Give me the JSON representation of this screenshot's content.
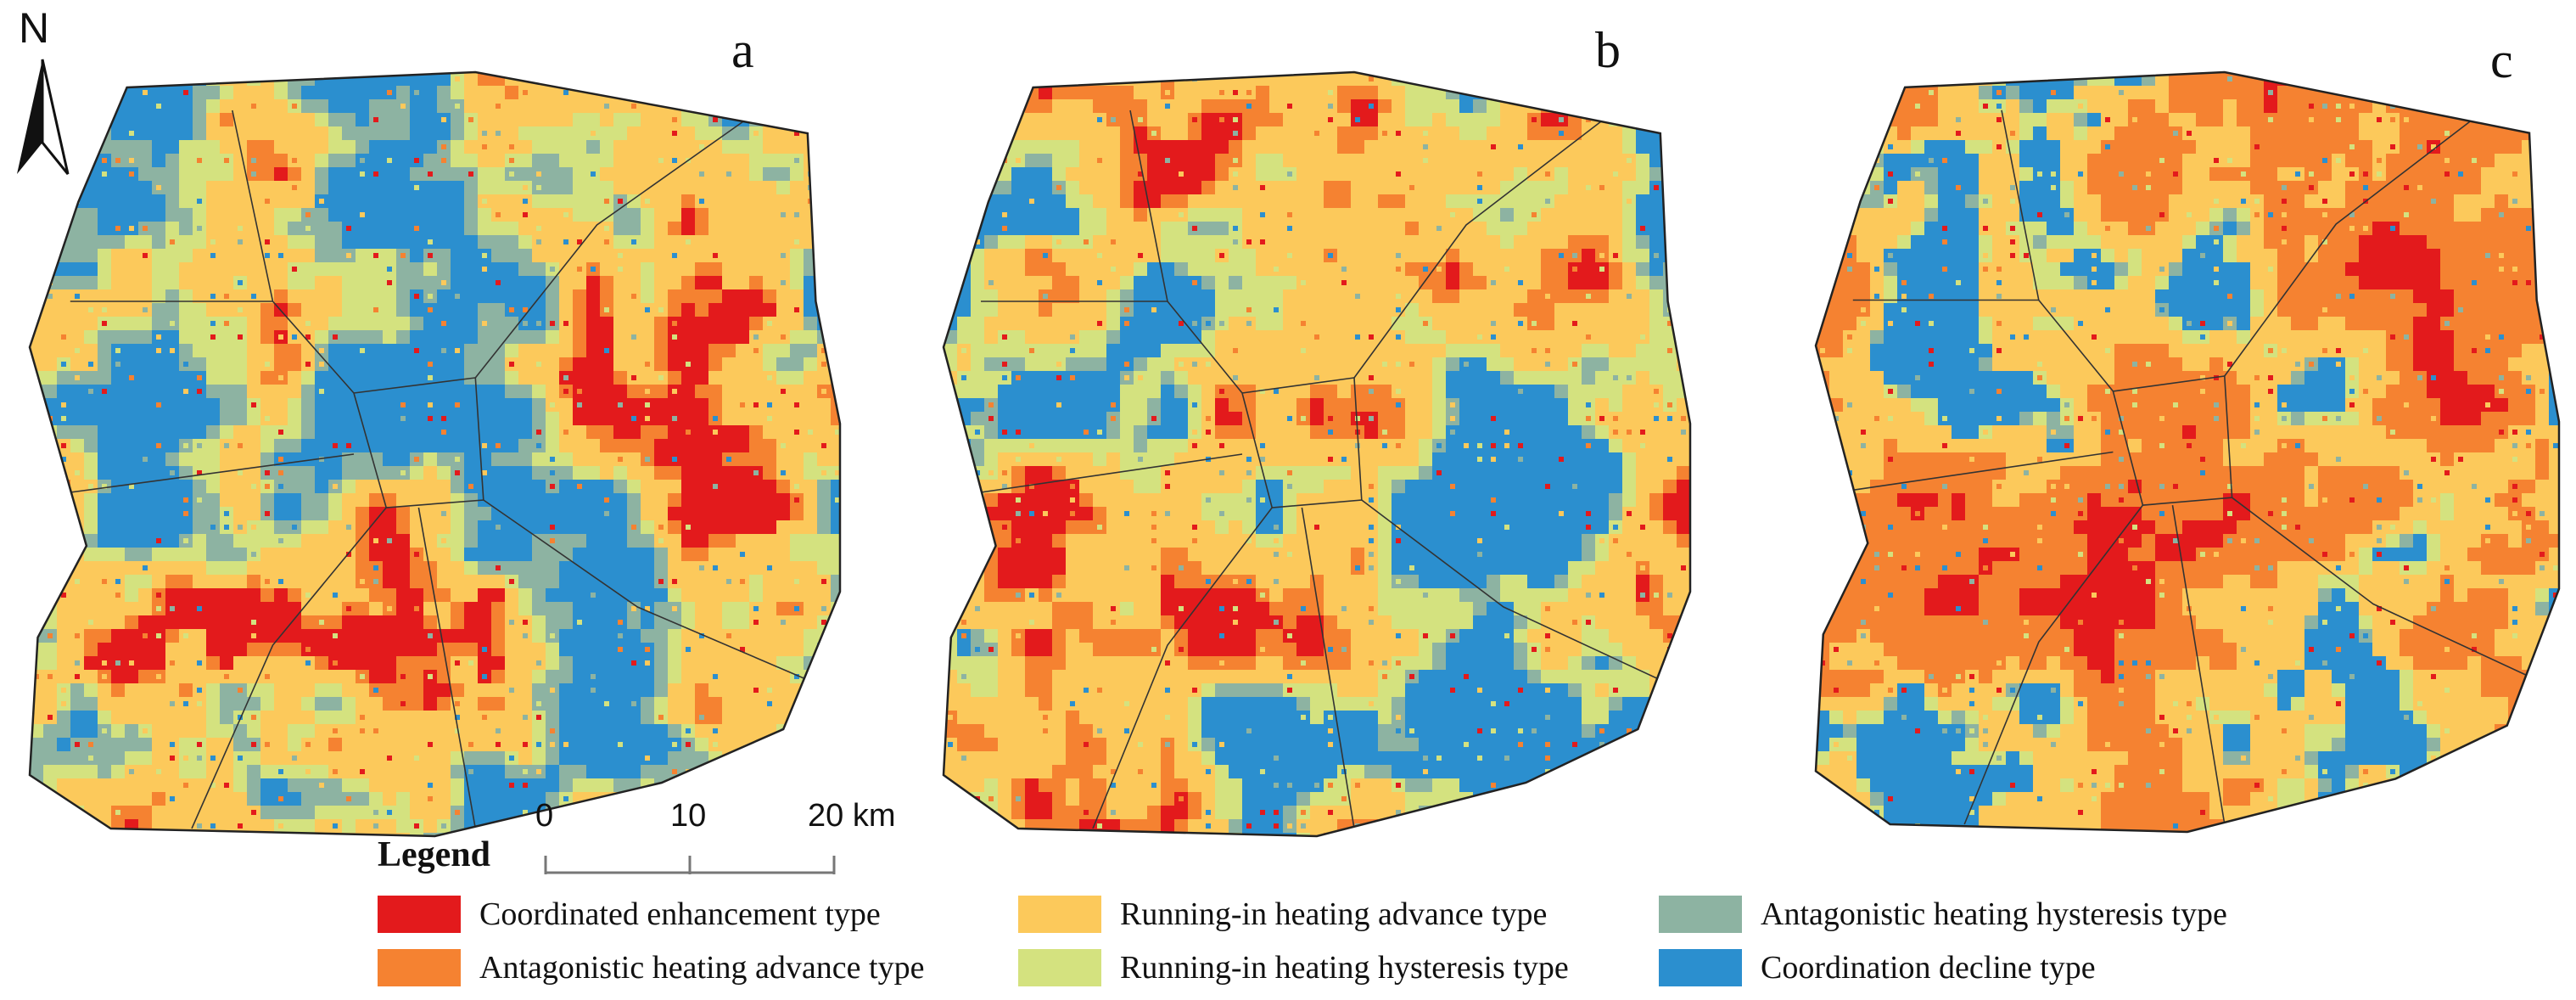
{
  "panels": [
    {
      "label": "a",
      "seed": 11,
      "weights": {
        "red": 0.16,
        "orange": 0.09,
        "yellow": 0.27,
        "lightgreen": 0.1,
        "grayteal": 0.12,
        "blue": 0.26
      }
    },
    {
      "label": "b",
      "seed": 29,
      "weights": {
        "red": 0.07,
        "orange": 0.13,
        "yellow": 0.3,
        "lightgreen": 0.17,
        "grayteal": 0.05,
        "blue": 0.28
      }
    },
    {
      "label": "c",
      "seed": 47,
      "weights": {
        "red": 0.06,
        "orange": 0.4,
        "yellow": 0.27,
        "lightgreen": 0.06,
        "grayteal": 0.02,
        "blue": 0.19
      }
    }
  ],
  "north_arrow": {
    "label": "N"
  },
  "scale_bar": {
    "ticks": [
      "0",
      "10",
      "20 km"
    ]
  },
  "legend": {
    "title": "Legend",
    "items": [
      {
        "key": "red",
        "label": "Coordinated enhancement type",
        "color": "#e31a1c"
      },
      {
        "key": "orange",
        "label": "Antagonistic heating advance type",
        "color": "#f58231"
      },
      {
        "key": "yellow",
        "label": "Running-in heating advance type",
        "color": "#fcc95b"
      },
      {
        "key": "lightgreen",
        "label": "Running-in heating hysteresis type",
        "color": "#d4e27f"
      },
      {
        "key": "grayteal",
        "label": "Antagonistic heating hysteresis type",
        "color": "#8db3a2"
      },
      {
        "key": "blue",
        "label": "Coordination decline type",
        "color": "#2b8fcf"
      }
    ]
  }
}
